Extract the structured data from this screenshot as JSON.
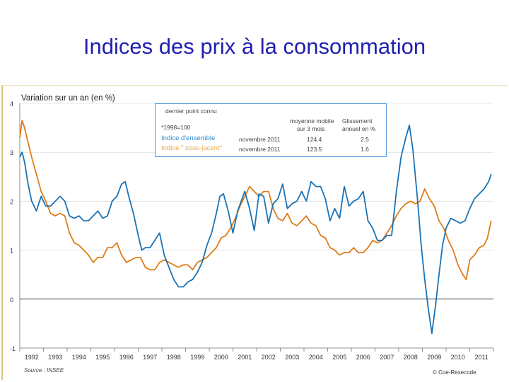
{
  "title": "Indices des prix à la consommation",
  "colors": {
    "title": "#1f1fb0",
    "blue": "#1a73b5",
    "orange": "#e07b1a",
    "frame": "#d8c680"
  },
  "chart_data": {
    "type": "line",
    "title": "Variation sur un an (en %)",
    "ylim": [
      -1,
      4
    ],
    "yticks": [
      "4",
      "3",
      "2",
      "1",
      "0",
      "-1"
    ],
    "xlim": [
      1992,
      2012
    ],
    "categories": [
      "1992",
      "1993",
      "1994",
      "1995",
      "1996",
      "1997",
      "1998",
      "1999",
      "2000",
      "2001",
      "2002",
      "2003",
      "2004",
      "2005",
      "2006",
      "2007",
      "2008",
      "2009",
      "2010",
      "2011"
    ],
    "source": "Source : INSEE",
    "copyright": "© Coe-Rexecode",
    "legend": {
      "header_last_point": "dernier point connu",
      "base": "*1998=100",
      "col_avg": "moyenne mobile",
      "col_avg2": "sur 3 mois",
      "col_slip": "Glissement",
      "col_slip2": "annuel en %",
      "rows": [
        {
          "name": "Indice d'ensemble",
          "date": "novembre 2011",
          "avg": "124.4",
          "slip": "2.5"
        },
        {
          "name": "Indice \" sous-jacent\"",
          "date": "novembre 2011",
          "avg": "123.5",
          "slip": "1.6"
        }
      ]
    },
    "series": [
      {
        "name": "Indice d'ensemble",
        "points": [
          [
            1992.0,
            2.9
          ],
          [
            1992.1,
            3.0
          ],
          [
            1992.2,
            2.8
          ],
          [
            1992.35,
            2.35
          ],
          [
            1992.5,
            2.0
          ],
          [
            1992.7,
            1.8
          ],
          [
            1992.9,
            2.1
          ],
          [
            1993.1,
            1.9
          ],
          [
            1993.3,
            1.9
          ],
          [
            1993.5,
            2.0
          ],
          [
            1993.7,
            2.1
          ],
          [
            1993.9,
            2.0
          ],
          [
            1994.1,
            1.7
          ],
          [
            1994.3,
            1.65
          ],
          [
            1994.5,
            1.7
          ],
          [
            1994.7,
            1.6
          ],
          [
            1994.9,
            1.6
          ],
          [
            1995.1,
            1.7
          ],
          [
            1995.3,
            1.8
          ],
          [
            1995.5,
            1.65
          ],
          [
            1995.7,
            1.7
          ],
          [
            1995.9,
            2.0
          ],
          [
            1996.1,
            2.1
          ],
          [
            1996.3,
            2.35
          ],
          [
            1996.45,
            2.4
          ],
          [
            1996.6,
            2.1
          ],
          [
            1996.8,
            1.75
          ],
          [
            1997.0,
            1.3
          ],
          [
            1997.15,
            1.0
          ],
          [
            1997.3,
            1.05
          ],
          [
            1997.5,
            1.05
          ],
          [
            1997.7,
            1.2
          ],
          [
            1997.9,
            1.35
          ],
          [
            1998.1,
            0.9
          ],
          [
            1998.3,
            0.65
          ],
          [
            1998.5,
            0.4
          ],
          [
            1998.7,
            0.25
          ],
          [
            1998.9,
            0.25
          ],
          [
            1999.1,
            0.35
          ],
          [
            1999.3,
            0.4
          ],
          [
            1999.5,
            0.55
          ],
          [
            1999.7,
            0.75
          ],
          [
            1999.9,
            1.1
          ],
          [
            2000.1,
            1.35
          ],
          [
            2000.3,
            1.75
          ],
          [
            2000.45,
            2.1
          ],
          [
            2000.6,
            2.15
          ],
          [
            2000.8,
            1.8
          ],
          [
            2001.0,
            1.35
          ],
          [
            2001.2,
            1.8
          ],
          [
            2001.35,
            2.0
          ],
          [
            2001.5,
            2.2
          ],
          [
            2001.7,
            1.85
          ],
          [
            2001.9,
            1.4
          ],
          [
            2002.1,
            2.15
          ],
          [
            2002.3,
            2.1
          ],
          [
            2002.5,
            1.55
          ],
          [
            2002.7,
            1.95
          ],
          [
            2002.9,
            2.05
          ],
          [
            2003.1,
            2.35
          ],
          [
            2003.3,
            1.85
          ],
          [
            2003.5,
            1.95
          ],
          [
            2003.7,
            2.0
          ],
          [
            2003.9,
            2.2
          ],
          [
            2004.1,
            2.0
          ],
          [
            2004.3,
            2.4
          ],
          [
            2004.5,
            2.3
          ],
          [
            2004.7,
            2.3
          ],
          [
            2004.9,
            2.05
          ],
          [
            2005.1,
            1.6
          ],
          [
            2005.3,
            1.85
          ],
          [
            2005.5,
            1.65
          ],
          [
            2005.7,
            2.3
          ],
          [
            2005.9,
            1.9
          ],
          [
            2006.1,
            2.0
          ],
          [
            2006.3,
            2.05
          ],
          [
            2006.5,
            2.2
          ],
          [
            2006.7,
            1.6
          ],
          [
            2006.9,
            1.45
          ],
          [
            2007.1,
            1.2
          ],
          [
            2007.3,
            1.2
          ],
          [
            2007.5,
            1.3
          ],
          [
            2007.7,
            1.3
          ],
          [
            2007.9,
            2.2
          ],
          [
            2008.1,
            2.9
          ],
          [
            2008.3,
            3.3
          ],
          [
            2008.45,
            3.55
          ],
          [
            2008.6,
            3.05
          ],
          [
            2008.8,
            2.0
          ],
          [
            2008.95,
            1.1
          ],
          [
            2009.1,
            0.4
          ],
          [
            2009.25,
            -0.2
          ],
          [
            2009.4,
            -0.7
          ],
          [
            2009.55,
            -0.15
          ],
          [
            2009.7,
            0.5
          ],
          [
            2009.85,
            1.1
          ],
          [
            2010.0,
            1.45
          ],
          [
            2010.2,
            1.65
          ],
          [
            2010.4,
            1.6
          ],
          [
            2010.6,
            1.55
          ],
          [
            2010.8,
            1.6
          ],
          [
            2011.0,
            1.85
          ],
          [
            2011.2,
            2.05
          ],
          [
            2011.4,
            2.15
          ],
          [
            2011.6,
            2.25
          ],
          [
            2011.8,
            2.4
          ],
          [
            2011.9,
            2.55
          ]
        ]
      },
      {
        "name": "Indice \" sous-jacent\"",
        "points": [
          [
            1992.0,
            3.3
          ],
          [
            1992.1,
            3.65
          ],
          [
            1992.2,
            3.5
          ],
          [
            1992.35,
            3.2
          ],
          [
            1992.5,
            2.9
          ],
          [
            1992.7,
            2.55
          ],
          [
            1992.9,
            2.2
          ],
          [
            1993.1,
            2.0
          ],
          [
            1993.3,
            1.75
          ],
          [
            1993.5,
            1.7
          ],
          [
            1993.7,
            1.75
          ],
          [
            1993.9,
            1.7
          ],
          [
            1994.1,
            1.35
          ],
          [
            1994.3,
            1.15
          ],
          [
            1994.5,
            1.1
          ],
          [
            1994.7,
            1.0
          ],
          [
            1994.9,
            0.9
          ],
          [
            1995.1,
            0.75
          ],
          [
            1995.3,
            0.85
          ],
          [
            1995.5,
            0.85
          ],
          [
            1995.7,
            1.05
          ],
          [
            1995.9,
            1.05
          ],
          [
            1996.1,
            1.15
          ],
          [
            1996.3,
            0.9
          ],
          [
            1996.5,
            0.75
          ],
          [
            1996.7,
            0.8
          ],
          [
            1996.9,
            0.85
          ],
          [
            1997.1,
            0.85
          ],
          [
            1997.3,
            0.65
          ],
          [
            1997.5,
            0.6
          ],
          [
            1997.7,
            0.6
          ],
          [
            1997.9,
            0.75
          ],
          [
            1998.1,
            0.8
          ],
          [
            1998.3,
            0.75
          ],
          [
            1998.5,
            0.7
          ],
          [
            1998.7,
            0.65
          ],
          [
            1998.9,
            0.7
          ],
          [
            1999.1,
            0.7
          ],
          [
            1999.3,
            0.6
          ],
          [
            1999.5,
            0.75
          ],
          [
            1999.7,
            0.8
          ],
          [
            1999.9,
            0.85
          ],
          [
            2000.1,
            0.95
          ],
          [
            2000.3,
            1.05
          ],
          [
            2000.5,
            1.25
          ],
          [
            2000.7,
            1.3
          ],
          [
            2000.9,
            1.45
          ],
          [
            2001.1,
            1.65
          ],
          [
            2001.3,
            1.9
          ],
          [
            2001.5,
            2.1
          ],
          [
            2001.7,
            2.3
          ],
          [
            2001.9,
            2.2
          ],
          [
            2002.1,
            2.1
          ],
          [
            2002.3,
            2.2
          ],
          [
            2002.5,
            2.2
          ],
          [
            2002.7,
            1.85
          ],
          [
            2002.9,
            1.65
          ],
          [
            2003.1,
            1.6
          ],
          [
            2003.3,
            1.75
          ],
          [
            2003.5,
            1.55
          ],
          [
            2003.7,
            1.5
          ],
          [
            2003.9,
            1.6
          ],
          [
            2004.1,
            1.7
          ],
          [
            2004.3,
            1.55
          ],
          [
            2004.5,
            1.5
          ],
          [
            2004.7,
            1.3
          ],
          [
            2004.9,
            1.25
          ],
          [
            2005.1,
            1.05
          ],
          [
            2005.3,
            1.0
          ],
          [
            2005.5,
            0.9
          ],
          [
            2005.7,
            0.95
          ],
          [
            2005.9,
            0.95
          ],
          [
            2006.1,
            1.05
          ],
          [
            2006.3,
            0.95
          ],
          [
            2006.5,
            0.95
          ],
          [
            2006.7,
            1.05
          ],
          [
            2006.9,
            1.2
          ],
          [
            2007.1,
            1.15
          ],
          [
            2007.3,
            1.2
          ],
          [
            2007.5,
            1.35
          ],
          [
            2007.7,
            1.5
          ],
          [
            2007.9,
            1.7
          ],
          [
            2008.1,
            1.85
          ],
          [
            2008.3,
            1.95
          ],
          [
            2008.5,
            2.0
          ],
          [
            2008.7,
            1.95
          ],
          [
            2008.9,
            2.0
          ],
          [
            2009.1,
            2.25
          ],
          [
            2009.3,
            2.05
          ],
          [
            2009.5,
            1.9
          ],
          [
            2009.7,
            1.6
          ],
          [
            2009.9,
            1.45
          ],
          [
            2010.1,
            1.2
          ],
          [
            2010.3,
            1.0
          ],
          [
            2010.5,
            0.7
          ],
          [
            2010.7,
            0.5
          ],
          [
            2010.85,
            0.4
          ],
          [
            2011.0,
            0.8
          ],
          [
            2011.2,
            0.9
          ],
          [
            2011.4,
            1.05
          ],
          [
            2011.6,
            1.1
          ],
          [
            2011.75,
            1.25
          ],
          [
            2011.9,
            1.6
          ]
        ]
      }
    ]
  }
}
